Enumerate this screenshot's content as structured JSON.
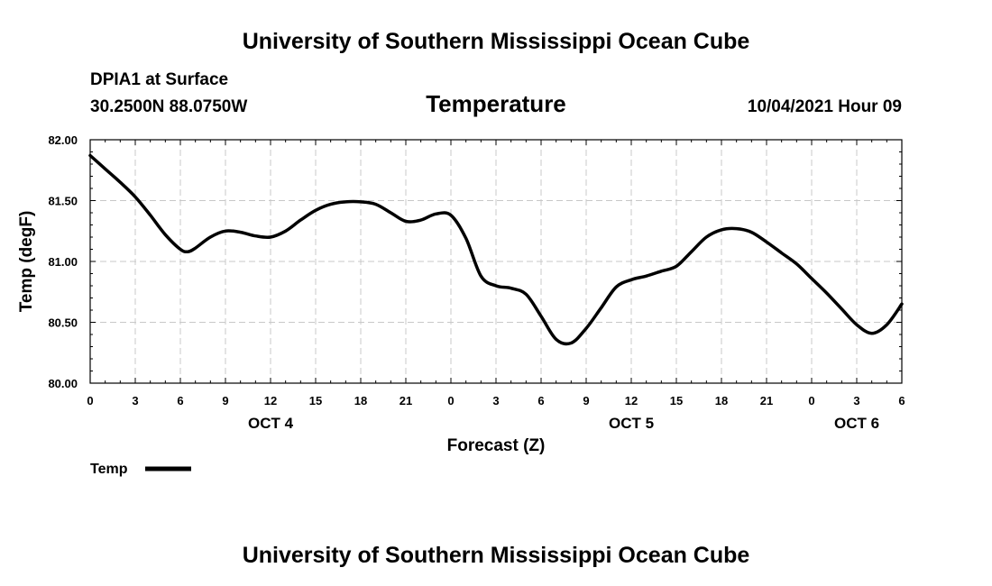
{
  "header": {
    "top_title": "University of Southern Mississippi Ocean Cube",
    "station": "DPIA1 at Surface",
    "coords": "30.2500N  88.0750W",
    "datetime": "10/04/2021 Hour 09"
  },
  "footer": {
    "bottom_title": "University of Southern Mississippi Ocean Cube"
  },
  "colors": {
    "line": "#000000",
    "grid": "#c8c8c8",
    "frame": "#000000"
  },
  "chart_data": {
    "type": "line",
    "title": "Temperature",
    "xlabel": "Forecast (Z)",
    "ylabel": "Temp (degF)",
    "xlim": [
      0,
      54
    ],
    "ylim": [
      80.0,
      82.0
    ],
    "yticks": [
      80.0,
      80.5,
      81.0,
      81.5,
      82.0
    ],
    "ytick_labels": [
      "80.00",
      "80.50",
      "81.00",
      "81.50",
      "82.00"
    ],
    "xticks": [
      0,
      3,
      6,
      9,
      12,
      15,
      18,
      21,
      24,
      27,
      30,
      33,
      36,
      39,
      42,
      45,
      48,
      51,
      54
    ],
    "xtick_labels": [
      "0",
      "3",
      "6",
      "9",
      "12",
      "15",
      "18",
      "21",
      "0",
      "3",
      "6",
      "9",
      "12",
      "15",
      "18",
      "21",
      "0",
      "3",
      "6"
    ],
    "day_labels": [
      {
        "label": "OCT 4",
        "x": 12
      },
      {
        "label": "OCT 5",
        "x": 36
      },
      {
        "label": "OCT 6",
        "x": 51
      }
    ],
    "grid": true,
    "legend": {
      "position": "bottom-left",
      "label": "Temp"
    },
    "series": [
      {
        "name": "Temp",
        "x": [
          0,
          1,
          2,
          3,
          4,
          5,
          6,
          6.5,
          7,
          8,
          9,
          10,
          11,
          12,
          13,
          14,
          15,
          16,
          17,
          18,
          19,
          20,
          21,
          22,
          23,
          24,
          25,
          26,
          27,
          28,
          29,
          30,
          31,
          32,
          33,
          34,
          35,
          36,
          37,
          38,
          39,
          40,
          41,
          42,
          43,
          44,
          45,
          46,
          47,
          48,
          49,
          50,
          51,
          52,
          53,
          54
        ],
        "values": [
          81.87,
          81.76,
          81.65,
          81.53,
          81.38,
          81.22,
          81.1,
          81.08,
          81.11,
          81.2,
          81.25,
          81.24,
          81.21,
          81.2,
          81.25,
          81.34,
          81.42,
          81.47,
          81.49,
          81.49,
          81.47,
          81.4,
          81.33,
          81.34,
          81.39,
          81.38,
          81.19,
          80.88,
          80.8,
          80.78,
          80.73,
          80.55,
          80.36,
          80.33,
          80.45,
          80.62,
          80.79,
          80.85,
          80.88,
          80.92,
          80.96,
          81.08,
          81.2,
          81.26,
          81.27,
          81.24,
          81.16,
          81.07,
          80.98,
          80.86,
          80.74,
          80.61,
          80.48,
          80.41,
          80.48,
          80.65
        ]
      }
    ]
  }
}
